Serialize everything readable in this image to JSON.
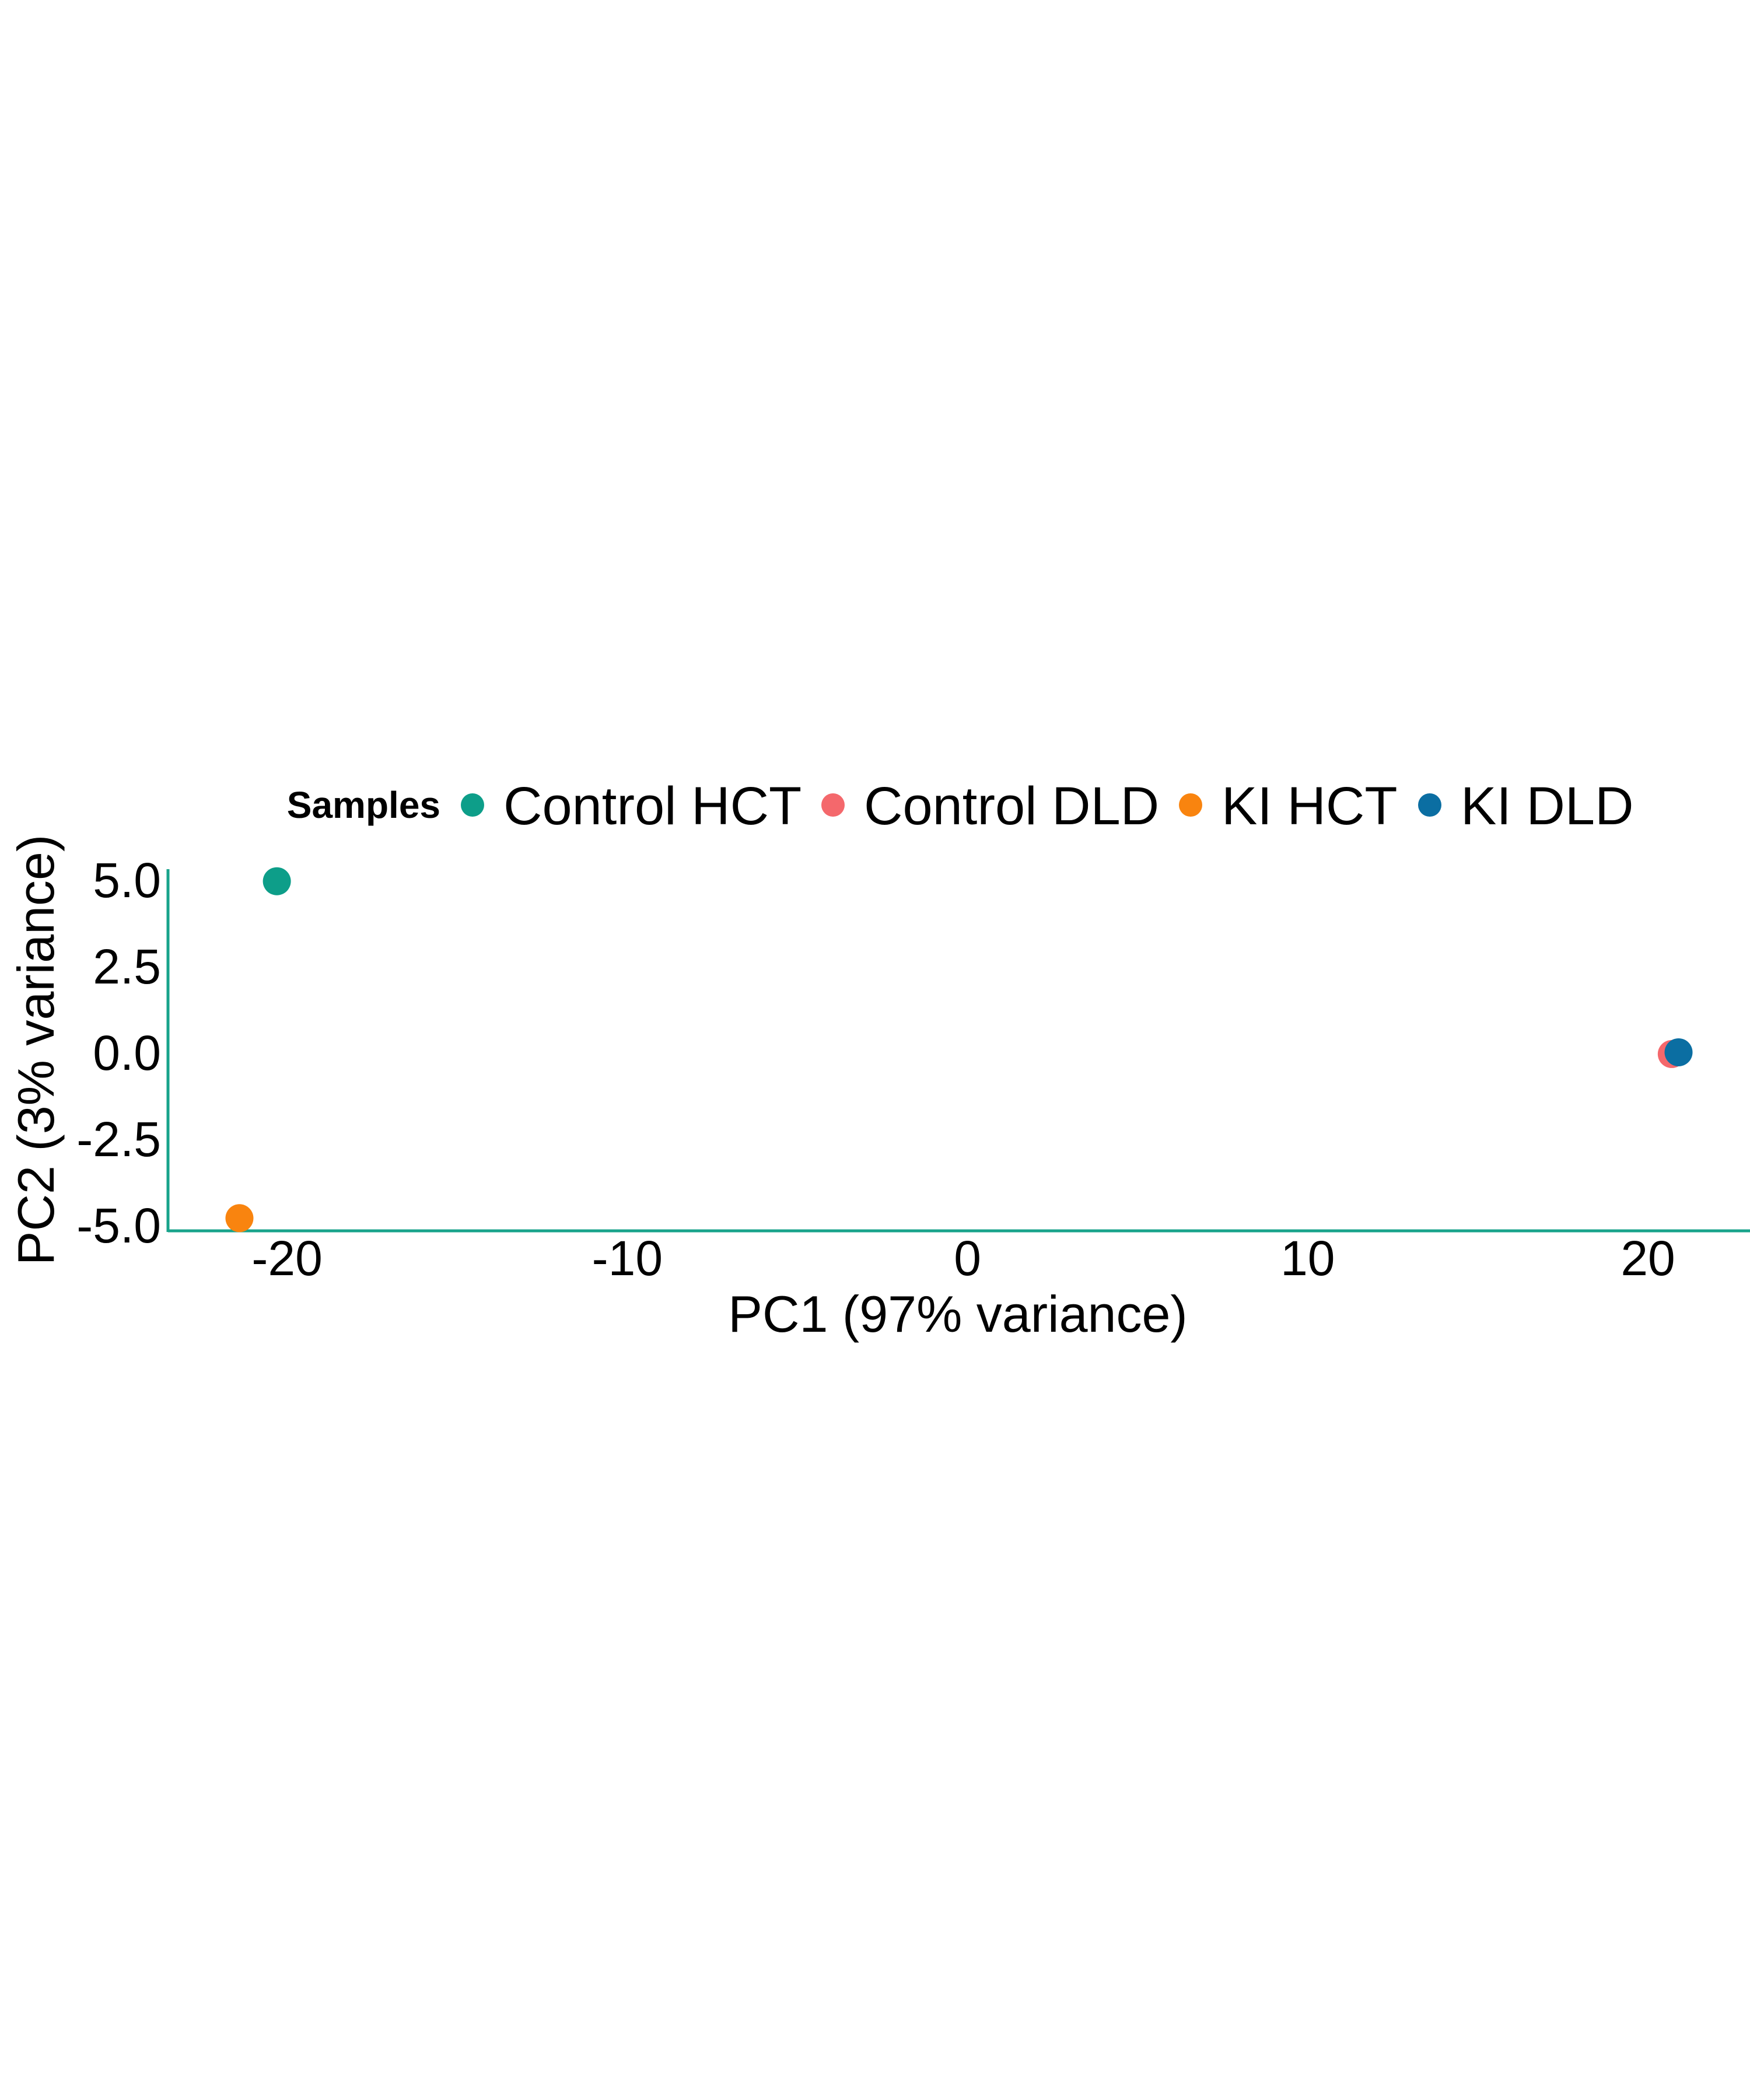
{
  "chart_data": {
    "type": "scatter",
    "xlabel": "PC1 (97% variance)",
    "ylabel": "PC2 (3% variance)",
    "xlim": [
      -23.5,
      23
    ],
    "ylim": [
      -5.2,
      5.3
    ],
    "x_ticks": [
      {
        "value": -20,
        "label": "-20"
      },
      {
        "value": -10,
        "label": "-10"
      },
      {
        "value": 0,
        "label": "0"
      },
      {
        "value": 10,
        "label": "10"
      },
      {
        "value": 20,
        "label": "20"
      }
    ],
    "y_ticks": [
      {
        "value": 5.0,
        "label": "5.0"
      },
      {
        "value": 2.5,
        "label": "2.5"
      },
      {
        "value": 0.0,
        "label": "0.0"
      },
      {
        "value": -2.5,
        "label": "-2.5"
      },
      {
        "value": -5.0,
        "label": "-5.0"
      }
    ],
    "grid": false,
    "axis_color": "#18a38b",
    "legend": {
      "title": "Samples",
      "placement": "top",
      "entries": [
        "Control HCT",
        "Control DLD",
        "KI HCT",
        "KI DLD"
      ]
    },
    "series": [
      {
        "name": "Control HCT",
        "color": "#0d9e89",
        "points": [
          {
            "x": -20.3,
            "y": 4.95
          }
        ]
      },
      {
        "name": "Control DLD",
        "color": "#f4686c",
        "points": [
          {
            "x": 20.7,
            "y": -0.05
          }
        ]
      },
      {
        "name": "KI HCT",
        "color": "#f9840f",
        "points": [
          {
            "x": -21.4,
            "y": -4.8
          }
        ]
      },
      {
        "name": "KI DLD",
        "color": "#0b6ea2",
        "points": [
          {
            "x": 20.9,
            "y": 0.0
          }
        ]
      }
    ]
  }
}
